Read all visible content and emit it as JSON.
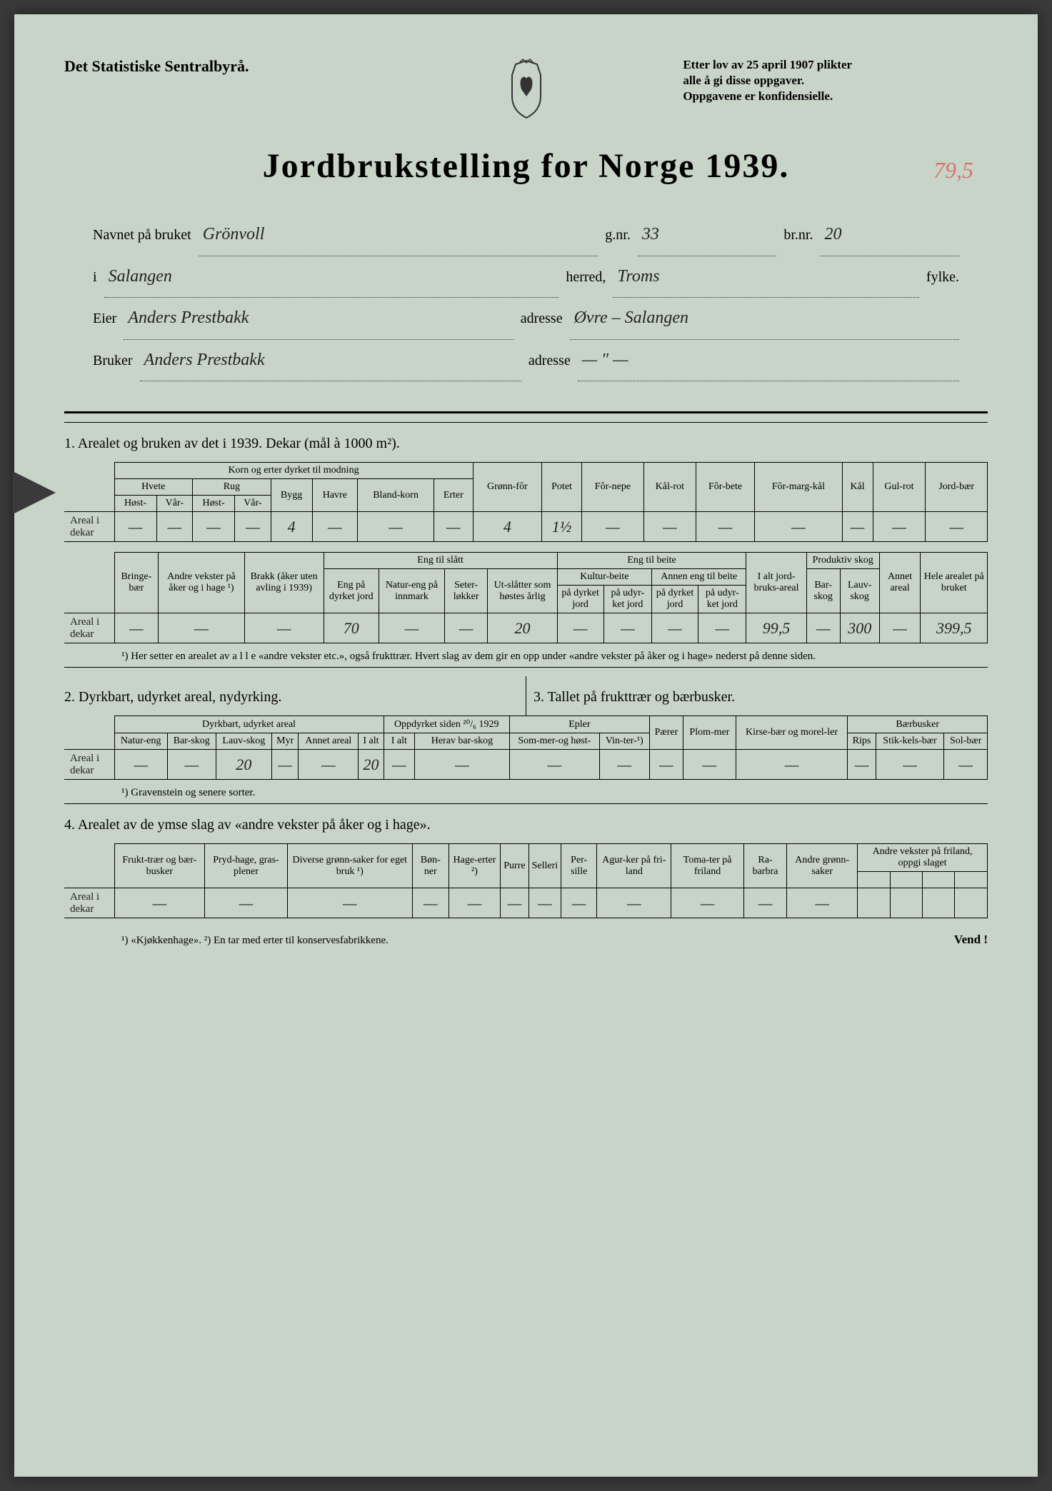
{
  "header": {
    "agency": "Det Statistiske Sentralbyrå.",
    "law1": "Etter lov av 25 april 1907 plikter",
    "law2": "alle å gi disse oppgaver.",
    "law3": "Oppgavene er konfidensielle.",
    "annotation": "79,5"
  },
  "title": "Jordbrukstelling for Norge 1939.",
  "fields": {
    "navnet_lbl": "Navnet på bruket",
    "navnet": "Grönvoll",
    "gnr_lbl": "g.nr.",
    "gnr": "33",
    "brnr_lbl": "br.nr.",
    "brnr": "20",
    "i_lbl": "i",
    "i": "Salangen",
    "herred_lbl": "herred,",
    "herred": "Troms",
    "fylke_lbl": "fylke.",
    "eier_lbl": "Eier",
    "eier": "Anders Prestbakk",
    "adresse_lbl": "adresse",
    "eier_adr": "Øvre – Salangen",
    "bruker_lbl": "Bruker",
    "bruker": "Anders Prestbakk",
    "bruker_adr": "—  \"  —"
  },
  "s1": {
    "title": "1.  Arealet og bruken av det i 1939.   Dekar (mål à 1000 m²).",
    "korn_hdr": "Korn og erter dyrket til modning",
    "hvete": "Hvete",
    "rug": "Rug",
    "host": "Høst-",
    "var": "Vår-",
    "bygg": "Bygg",
    "havre": "Havre",
    "blandkorn": "Bland-korn",
    "erter": "Erter",
    "gronnfor": "Grønn-fôr",
    "potet": "Potet",
    "fornepe": "Fôr-nepe",
    "kalrot": "Kål-rot",
    "forbete": "Fôr-bete",
    "formargkal": "Fôr-marg-kål",
    "kal": "Kål",
    "gulrot": "Gul-rot",
    "jordbaer": "Jord-bær",
    "rowlbl": "Areal i dekar",
    "vals": [
      "—",
      "—",
      "—",
      "—",
      "4",
      "—",
      "—",
      "—",
      "4",
      "1½",
      "—",
      "—",
      "—",
      "—",
      "—",
      "—",
      "—"
    ],
    "r2": {
      "bringe": "Bringe-bær",
      "andre": "Andre vekster på åker og i hage ¹)",
      "brakk": "Brakk (åker uten avling i 1939)",
      "engslaatt": "Eng til slått",
      "engdyrket": "Eng på dyrket jord",
      "natureng": "Natur-eng på innmark",
      "seter": "Seter-løkker",
      "utslatter": "Ut-slåtter som høstes årlig",
      "engbeite": "Eng til beite",
      "kulturbeite": "Kultur-beite",
      "annenbeite": "Annen eng til beite",
      "padyrket": "på dyrket jord",
      "paudyrket": "på udyr-ket jord",
      "ialt": "I alt jord-bruks-areal",
      "prodskog": "Produktiv skog",
      "barskog": "Bar-skog",
      "lauvskog": "Lauv-skog",
      "annet": "Annet areal",
      "hele": "Hele arealet på bruket",
      "vals": [
        "—",
        "—",
        "—",
        "70",
        "—",
        "—",
        "20",
        "—",
        "—",
        "—",
        "—",
        "99,5",
        "—",
        "300",
        "—",
        "399,5"
      ]
    },
    "foot": "¹) Her setter en arealet av  a l l e  «andre vekster etc.», også frukttrær.  Hvert slag av dem gir en opp under «andre vekster på åker og i hage» nederst på denne siden."
  },
  "s2": {
    "title": "2.  Dyrkbart, udyrket areal, nydyrking.",
    "dyrkbart": "Dyrkbart, udyrket areal",
    "oppdyrket": "Oppdyrket siden ²⁰/₆ 1929",
    "natureng": "Natur-eng",
    "barskog": "Bar-skog",
    "lauvskog": "Lauv-skog",
    "myr": "Myr",
    "annet": "Annet areal",
    "ialt": "I alt",
    "herav": "Herav bar-skog",
    "rowlbl": "Areal i dekar",
    "vals": [
      "—",
      "—",
      "20",
      "—",
      "—",
      "20",
      "—",
      "—"
    ],
    "foot": "¹) Gravenstein og senere sorter."
  },
  "s3": {
    "title": "3.  Tallet på frukttrær og bærbusker.",
    "epler": "Epler",
    "paerer": "Pærer",
    "plommer": "Plom-mer",
    "kirse": "Kirse-bær og morel-ler",
    "sommer": "Som-mer-og høst-",
    "vinter": "Vin-ter-¹)",
    "baer": "Bærbusker",
    "rips": "Rips",
    "stikkels": "Stik-kels-bær",
    "sol": "Sol-bær",
    "vals": [
      "—",
      "—",
      "—",
      "—",
      "—",
      "—",
      "—",
      "—"
    ]
  },
  "s4": {
    "title": "4.  Arealet av de ymse slag av «andre vekster på åker og i hage».",
    "c": [
      "Frukt-trær og bær-busker",
      "Pryd-hage, gras-plener",
      "Diverse grønn-saker for eget bruk ¹)",
      "Bøn-ner",
      "Hage-erter ²)",
      "Purre",
      "Selleri",
      "Per-sille",
      "Agur-ker på fri-land",
      "Toma-ter på friland",
      "Ra-barbra",
      "Andre grønn-saker"
    ],
    "andre": "Andre vekster på friland, oppgi slaget",
    "rowlbl": "Areal i dekar",
    "vals": [
      "—",
      "—",
      "—",
      "—",
      "—",
      "—",
      "—",
      "—",
      "—",
      "—",
      "—",
      "—",
      "",
      "",
      "",
      ""
    ],
    "foot": "¹) «Kjøkkenhage».   ²) En tar med erter til konservesfabrikkene.",
    "vend": "Vend !"
  }
}
